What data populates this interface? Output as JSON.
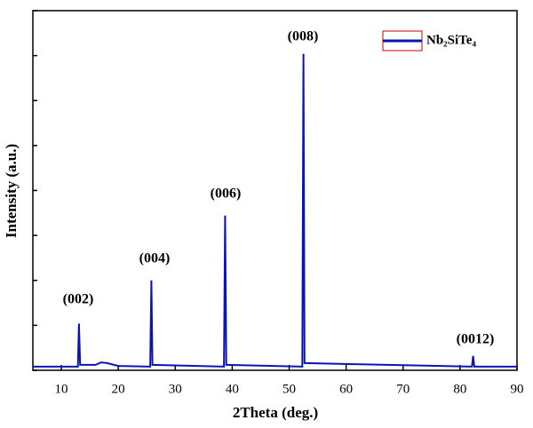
{
  "chart_data": {
    "type": "line",
    "xlabel": "2Theta (deg.)",
    "ylabel": "Intensity (a.u.)",
    "xlim": [
      5,
      90
    ],
    "xticks": [
      10,
      20,
      30,
      40,
      50,
      60,
      70,
      80,
      90
    ],
    "ylim": [
      0,
      100
    ],
    "yticks": [
      0,
      12.5,
      25,
      37.5,
      50,
      62.5,
      75,
      87.5,
      100
    ],
    "legend": "upper right",
    "annotations": [
      "(002)",
      "(004)",
      "(006)",
      "(008)",
      "(0012)"
    ],
    "series": [
      {
        "name": "Nb₂SiTe₄",
        "color": "#0a14b4",
        "x": [
          5,
          12.9,
          13.1,
          13.3,
          16,
          17,
          18,
          20,
          25.6,
          25.8,
          26,
          38.55,
          38.75,
          38.95,
          52.3,
          52.5,
          52.7,
          82.1,
          82.3,
          82.5,
          90
        ],
        "values": [
          1,
          1,
          13,
          1.5,
          1.5,
          2.2,
          2,
          1.2,
          1,
          25,
          1.5,
          1,
          43,
          1.5,
          1,
          88,
          2,
          1,
          4,
          1,
          1
        ]
      }
    ]
  }
}
